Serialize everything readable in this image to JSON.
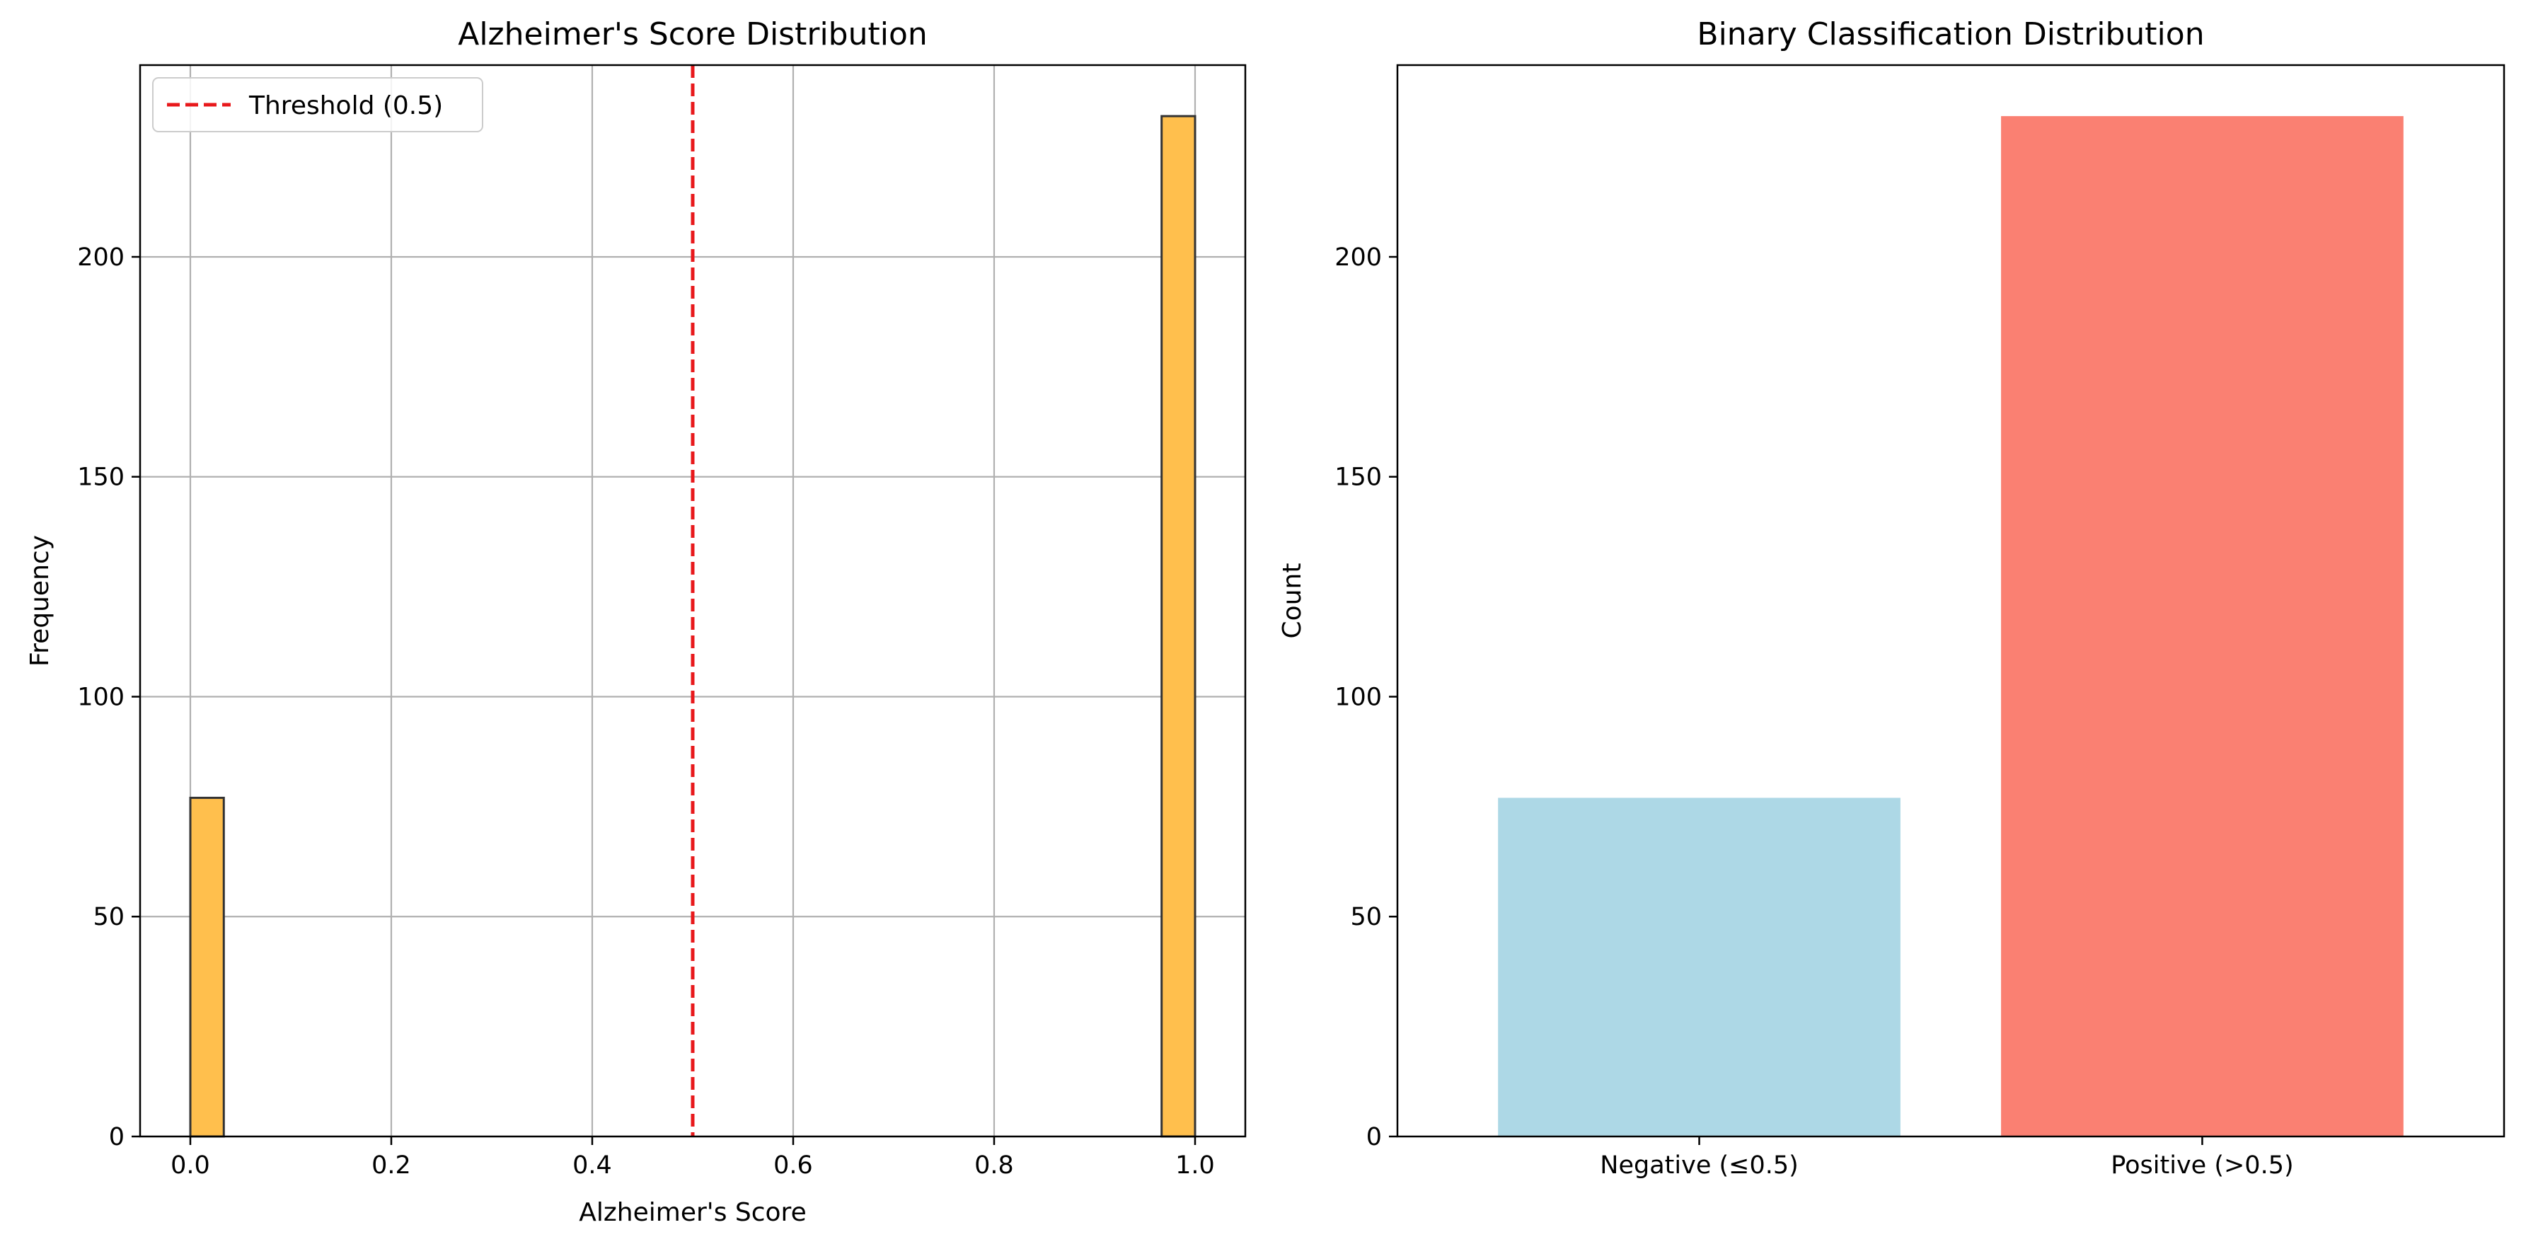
{
  "chart_data": [
    {
      "type": "bar",
      "subtype": "histogram",
      "title": "Alzheimer's Score Distribution",
      "xlabel": "Alzheimer's Score",
      "ylabel": "Frequency",
      "xlim": [
        -0.05,
        1.05
      ],
      "ylim": [
        0,
        243.6
      ],
      "xticks": [
        0.0,
        0.2,
        0.4,
        0.6,
        0.8,
        1.0
      ],
      "xtick_labels": [
        "0.0",
        "0.2",
        "0.4",
        "0.6",
        "0.8",
        "1.0"
      ],
      "yticks": [
        0,
        50,
        100,
        150,
        200
      ],
      "ytick_labels": [
        "0",
        "50",
        "100",
        "150",
        "200"
      ],
      "grid": true,
      "bins": [
        {
          "x0": 0.0,
          "x1": 0.0333,
          "count": 77
        },
        {
          "x0": 0.9667,
          "x1": 1.0,
          "count": 232
        }
      ],
      "bar_color": "#FFBF4D",
      "edge_color": "#333333",
      "threshold": {
        "x": 0.5,
        "label": "Threshold (0.5)",
        "color": "#E8191C"
      },
      "legend_position": "top-left"
    },
    {
      "type": "bar",
      "title": "Binary Classification Distribution",
      "xlabel": "",
      "ylabel": "Count",
      "ylim": [
        0,
        243.6
      ],
      "yticks": [
        0,
        50,
        100,
        150,
        200
      ],
      "ytick_labels": [
        "0",
        "50",
        "100",
        "150",
        "200"
      ],
      "grid": false,
      "categories": [
        "Negative (≤0.5)",
        "Positive (>0.5)"
      ],
      "values": [
        77,
        232
      ],
      "colors": [
        "#ADD8E6",
        "#FA8072"
      ]
    }
  ]
}
